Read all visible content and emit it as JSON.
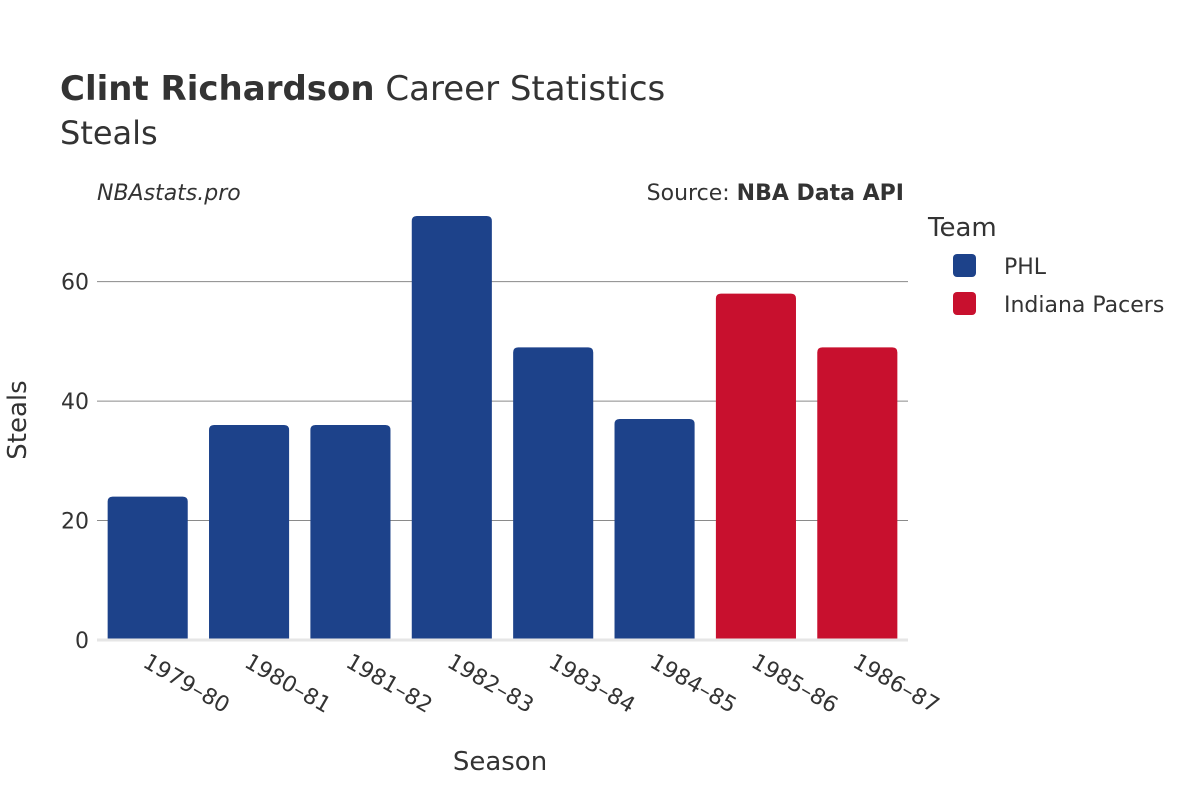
{
  "chart_data": {
    "type": "bar",
    "title_bold": "Clint Richardson",
    "title_rest": "Career Statistics",
    "subtitle": "Steals",
    "credit": "NBAstats.pro",
    "source_label": "Source:",
    "source_name": "NBA Data API",
    "xlabel": "Season",
    "ylabel": "Steals",
    "ylim": [
      0,
      72
    ],
    "yticks": [
      0,
      20,
      40,
      60
    ],
    "grid": true,
    "legend_position": "right",
    "legend_title": "Team",
    "teams": [
      {
        "name": "PHL",
        "color": "#1d428a"
      },
      {
        "name": "Indiana Pacers",
        "color": "#c8102e"
      }
    ],
    "categories": [
      "1979–80",
      "1980–81",
      "1981–82",
      "1982–83",
      "1983–84",
      "1984–85",
      "1985–86",
      "1986–87"
    ],
    "values": [
      24,
      36,
      36,
      71,
      49,
      37,
      58,
      49
    ],
    "team_of_bar": [
      0,
      0,
      0,
      0,
      0,
      0,
      1,
      1
    ]
  }
}
